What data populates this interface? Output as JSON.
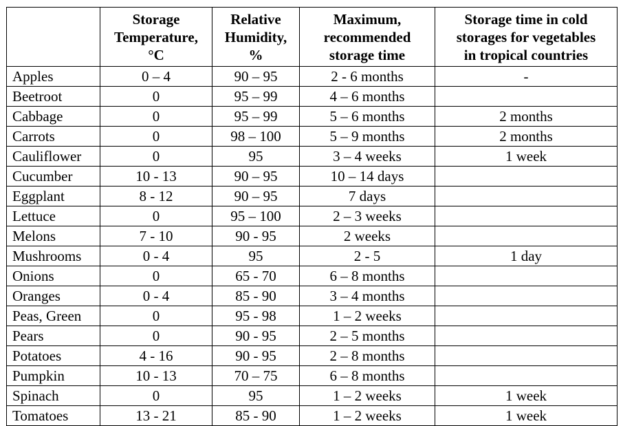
{
  "table": {
    "headers": [
      [
        ""
      ],
      [
        "Storage",
        "Temperature,",
        "°C"
      ],
      [
        "Relative",
        "Humidity,",
        "%"
      ],
      [
        "Maximum,",
        "recommended",
        "storage time"
      ],
      [
        "Storage time in cold",
        "storages for vegetables",
        "in tropical countries"
      ]
    ],
    "rows": [
      [
        "Apples",
        "0 – 4",
        "90 – 95",
        "2 - 6 months",
        "-"
      ],
      [
        "Beetroot",
        "0",
        "95 – 99",
        "4 – 6 months",
        ""
      ],
      [
        "Cabbage",
        "0",
        "95 – 99",
        "5 – 6 months",
        "2 months"
      ],
      [
        "Carrots",
        "0",
        "98 – 100",
        "5 – 9 months",
        "2 months"
      ],
      [
        "Cauliflower",
        "0",
        "95",
        "3 – 4 weeks",
        "1 week"
      ],
      [
        "Cucumber",
        "10 - 13",
        "90 – 95",
        "10 – 14 days",
        ""
      ],
      [
        "Eggplant",
        "8 - 12",
        "90 – 95",
        "7 days",
        ""
      ],
      [
        "Lettuce",
        "0",
        "95 – 100",
        "2 – 3 weeks",
        ""
      ],
      [
        "Melons",
        "7 - 10",
        "90 - 95",
        "2 weeks",
        ""
      ],
      [
        "Mushrooms",
        "0 - 4",
        "95",
        "2 - 5",
        "1 day"
      ],
      [
        "Onions",
        "0",
        "65 - 70",
        "6 – 8 months",
        ""
      ],
      [
        "Oranges",
        "0 - 4",
        "85 - 90",
        "3 – 4 months",
        ""
      ],
      [
        "Peas, Green",
        "0",
        "95 - 98",
        "1 – 2 weeks",
        ""
      ],
      [
        "Pears",
        "0",
        "90 - 95",
        "2 – 5 months",
        ""
      ],
      [
        "Potatoes",
        "4 - 16",
        "90 - 95",
        "2 – 8 months",
        ""
      ],
      [
        "Pumpkin",
        "10 - 13",
        "70 – 75",
        "6 – 8 months",
        ""
      ],
      [
        "Spinach",
        "0",
        "95",
        "1 – 2 weeks",
        "1 week"
      ],
      [
        "Tomatoes",
        "13 - 21",
        "85 - 90",
        "1 – 2 weeks",
        "1 week"
      ]
    ]
  }
}
